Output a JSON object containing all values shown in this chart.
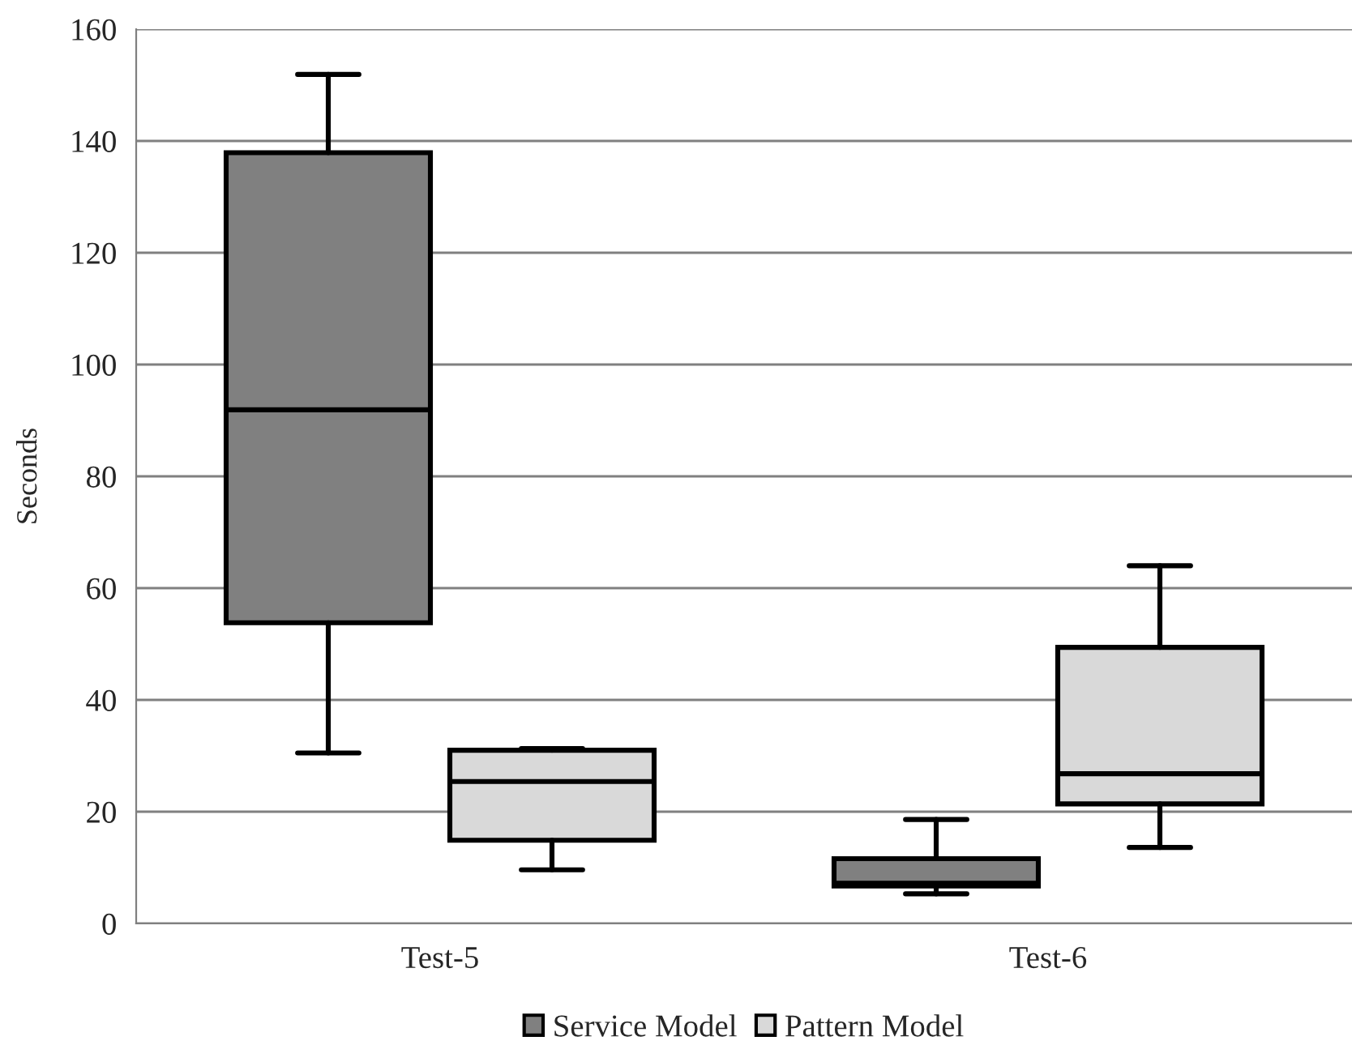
{
  "chart_data": {
    "type": "box",
    "ylabel": "Seconds",
    "categories": [
      "Test-5",
      "Test-6"
    ],
    "series": [
      {
        "name": "Service Model",
        "color": "#808080",
        "boxes": [
          {
            "low": 30.5,
            "q1": 53.8,
            "median": 91.9,
            "q3": 137.9,
            "high": 151.9
          },
          {
            "low": 5.3,
            "q1": 6.7,
            "median": 7.2,
            "q3": 11.6,
            "high": 18.6
          }
        ]
      },
      {
        "name": "Pattern Model",
        "color": "#d9d9d9",
        "boxes": [
          {
            "low": 9.6,
            "q1": 14.9,
            "median": 25.4,
            "q3": 31.0,
            "high": 31.3
          },
          {
            "low": 13.6,
            "q1": 21.4,
            "median": 26.8,
            "q3": 49.4,
            "high": 64.0
          }
        ]
      }
    ],
    "ylim": [
      0,
      160
    ],
    "yticks": [
      0,
      20,
      40,
      60,
      80,
      100,
      120,
      140,
      160
    ],
    "grid": "y",
    "legend": "bottom"
  }
}
